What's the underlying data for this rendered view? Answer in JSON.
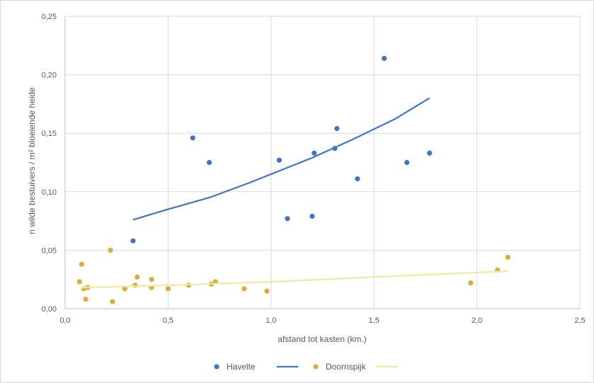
{
  "chart_data": {
    "type": "scatter",
    "xlabel": "afstand tot kasten (km.)",
    "ylabel": "n wilde bestuivers / m² bloeiende heide",
    "xlim": [
      0,
      2.5
    ],
    "ylim": [
      0,
      0.25
    ],
    "x_ticks": [
      "0,0",
      "0,5",
      "1,0",
      "1,5",
      "2,0",
      "2,5"
    ],
    "y_ticks": [
      "0,00",
      "0,05",
      "0,10",
      "0,15",
      "0,20",
      "0,25"
    ],
    "x_tick_values": [
      0,
      0.5,
      1.0,
      1.5,
      2.0,
      2.5
    ],
    "y_tick_values": [
      0,
      0.05,
      0.1,
      0.15,
      0.2,
      0.25
    ],
    "grid": "vertical and horizontal major gridlines",
    "legend_position": "bottom",
    "series": [
      {
        "name": "Havelte",
        "kind": "points",
        "color": "#4472C4",
        "x": [
          0.33,
          0.62,
          0.7,
          1.04,
          1.08,
          1.2,
          1.21,
          1.31,
          1.32,
          1.42,
          1.55,
          1.66,
          1.77
        ],
        "y": [
          0.058,
          0.146,
          0.125,
          0.127,
          0.077,
          0.079,
          0.133,
          0.137,
          0.154,
          0.111,
          0.214,
          0.125,
          0.133
        ]
      },
      {
        "name": "",
        "kind": "trendline",
        "color": "#4472C4",
        "x": [
          0.33,
          0.5,
          0.7,
          0.9,
          1.0,
          1.2,
          1.4,
          1.6,
          1.77
        ],
        "y": [
          0.076,
          0.085,
          0.095,
          0.108,
          0.115,
          0.129,
          0.145,
          0.162,
          0.18
        ]
      },
      {
        "name": "Doornspijk",
        "kind": "points",
        "color": "#D6AE3B",
        "x": [
          0.07,
          0.08,
          0.09,
          0.1,
          0.11,
          0.22,
          0.23,
          0.29,
          0.34,
          0.35,
          0.42,
          0.42,
          0.5,
          0.6,
          0.71,
          0.73,
          0.87,
          0.98,
          1.97,
          2.1,
          2.15
        ],
        "y": [
          0.023,
          0.038,
          0.017,
          0.008,
          0.018,
          0.05,
          0.006,
          0.017,
          0.02,
          0.027,
          0.025,
          0.018,
          0.017,
          0.02,
          0.021,
          0.023,
          0.017,
          0.015,
          0.022,
          0.033,
          0.044
        ]
      },
      {
        "name": "",
        "kind": "trendline",
        "color": "#F4E6A3",
        "x": [
          0.08,
          0.5,
          1.0,
          1.5,
          2.0,
          2.15
        ],
        "y": [
          0.018,
          0.02,
          0.023,
          0.027,
          0.031,
          0.032
        ]
      }
    ]
  }
}
